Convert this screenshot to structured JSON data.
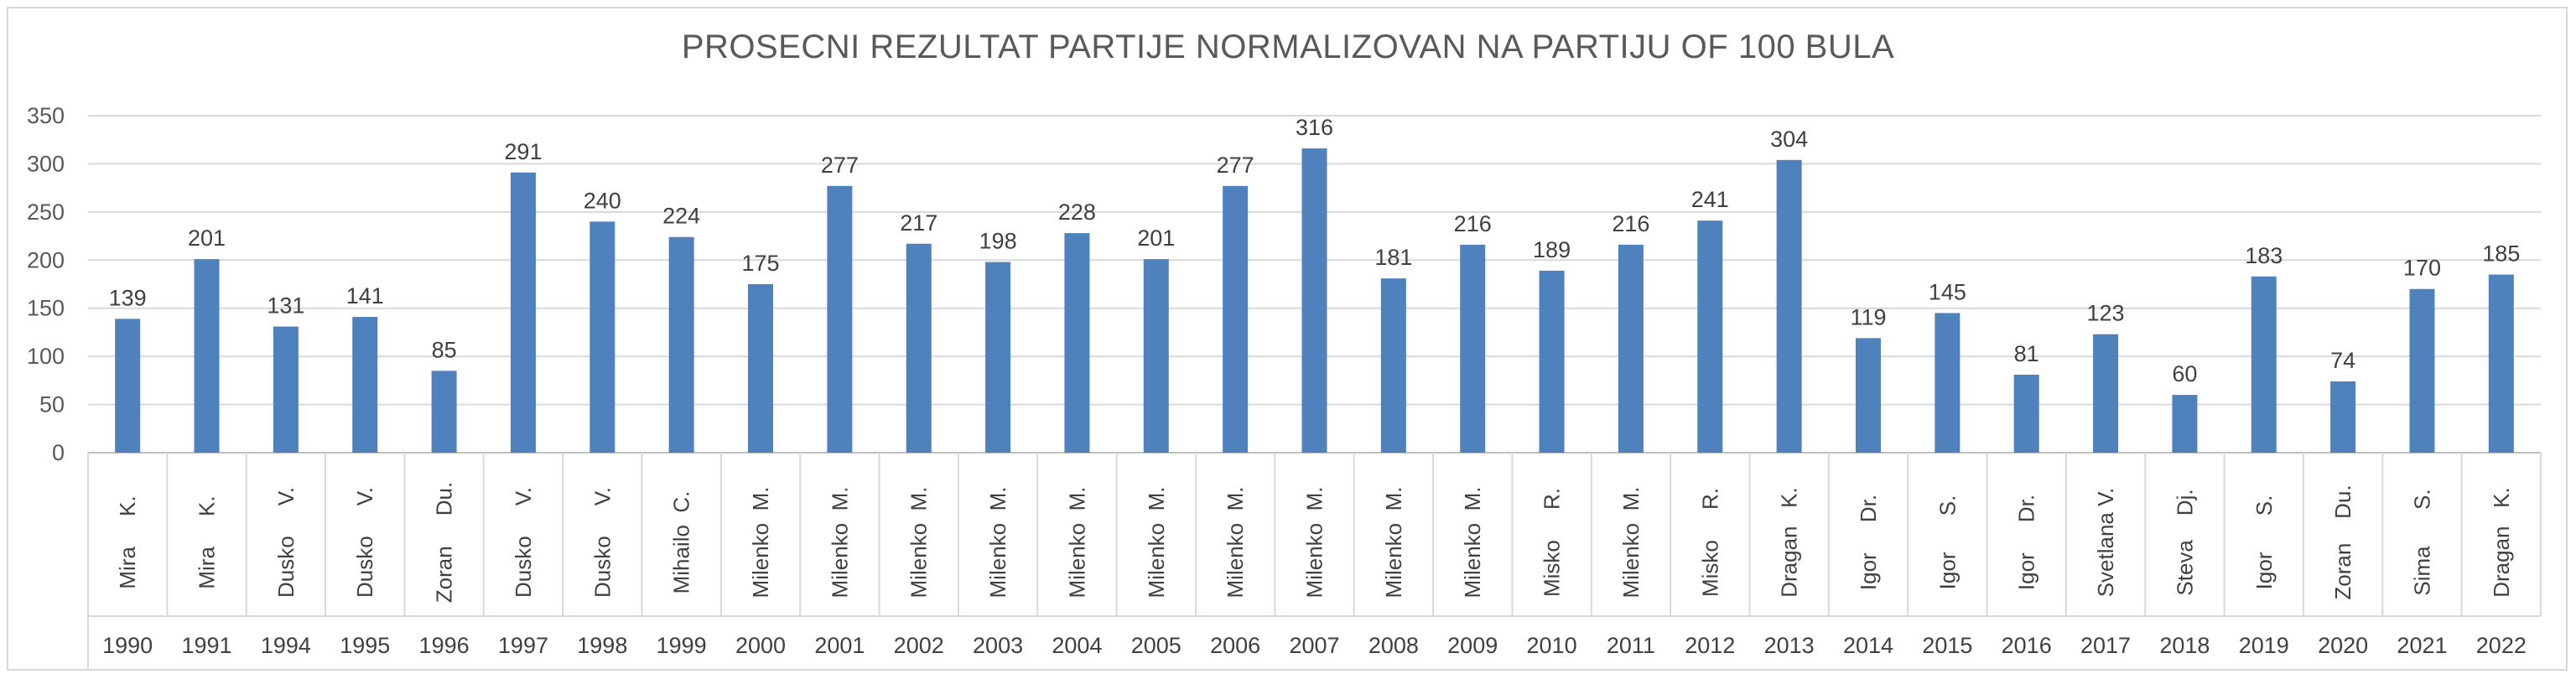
{
  "chart_data": {
    "type": "bar",
    "title": "PROSECNI REZULTAT PARTIJE NORMALIZOVAN NA PARTIJU OF 100 BULA",
    "xlabel": "",
    "ylabel": "",
    "ylim": [
      0,
      350
    ],
    "yticks": [
      0,
      50,
      100,
      150,
      200,
      250,
      300,
      350
    ],
    "grid": true,
    "legend": "none",
    "bar_color": "#4f81bd",
    "categories": [
      {
        "name": "Mira     K.",
        "year": "1990"
      },
      {
        "name": "Mira     K.",
        "year": "1991"
      },
      {
        "name": "Dusko     V.",
        "year": "1994"
      },
      {
        "name": "Dusko     V.",
        "year": "1995"
      },
      {
        "name": "Zoran     Du.",
        "year": "1996"
      },
      {
        "name": "Dusko     V.",
        "year": "1997"
      },
      {
        "name": "Dusko     V.",
        "year": "1998"
      },
      {
        "name": "Mihailo  C.",
        "year": "1999"
      },
      {
        "name": "Milenko  M.",
        "year": "2000"
      },
      {
        "name": "Milenko  M.",
        "year": "2001"
      },
      {
        "name": "Milenko  M.",
        "year": "2002"
      },
      {
        "name": "Milenko  M.",
        "year": "2003"
      },
      {
        "name": "Milenko  M.",
        "year": "2004"
      },
      {
        "name": "Milenko  M.",
        "year": "2005"
      },
      {
        "name": "Milenko  M.",
        "year": "2006"
      },
      {
        "name": "Milenko  M.",
        "year": "2007"
      },
      {
        "name": "Milenko  M.",
        "year": "2008"
      },
      {
        "name": "Milenko  M.",
        "year": "2009"
      },
      {
        "name": "Misko     R.",
        "year": "2010"
      },
      {
        "name": "Milenko  M.",
        "year": "2011"
      },
      {
        "name": "Misko     R.",
        "year": "2012"
      },
      {
        "name": "Dragan   K.",
        "year": "2013"
      },
      {
        "name": "Igor     Dr.",
        "year": "2014"
      },
      {
        "name": "Igor      S.",
        "year": "2015"
      },
      {
        "name": "Igor     Dr.",
        "year": "2016"
      },
      {
        "name": "Svetlana V.",
        "year": "2017"
      },
      {
        "name": "Steva    Dj.",
        "year": "2018"
      },
      {
        "name": "Igor      S.",
        "year": "2019"
      },
      {
        "name": "Zoran    Du.",
        "year": "2020"
      },
      {
        "name": "Sima      S.",
        "year": "2021"
      },
      {
        "name": "Dragan   K.",
        "year": "2022"
      }
    ],
    "values": [
      139,
      201,
      131,
      141,
      85,
      291,
      240,
      224,
      175,
      277,
      217,
      198,
      228,
      201,
      277,
      316,
      181,
      216,
      189,
      216,
      241,
      304,
      119,
      145,
      81,
      123,
      60,
      183,
      74,
      170,
      185
    ]
  }
}
